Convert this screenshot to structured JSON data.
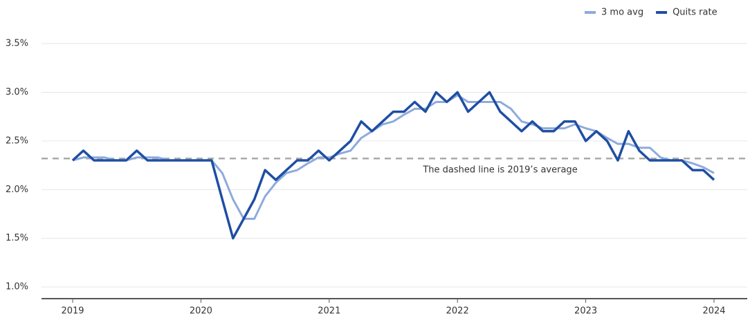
{
  "chart_data": {
    "type": "line",
    "categories": [
      "2019",
      null,
      null,
      null,
      null,
      null,
      null,
      null,
      null,
      null,
      null,
      null,
      "2020",
      null,
      null,
      null,
      null,
      null,
      null,
      null,
      null,
      null,
      null,
      null,
      "2021",
      null,
      null,
      null,
      null,
      null,
      null,
      null,
      null,
      null,
      null,
      null,
      "2022",
      null,
      null,
      null,
      null,
      null,
      null,
      null,
      null,
      null,
      null,
      null,
      "2023",
      null,
      null,
      null,
      null,
      null,
      null,
      null,
      null,
      null,
      null,
      null,
      "2024"
    ],
    "series": [
      {
        "name": "3 mo avg",
        "color": "#8eaadd",
        "values": [
          2.3,
          2.33,
          2.33,
          2.33,
          2.3,
          2.3,
          2.33,
          2.33,
          2.33,
          2.3,
          2.3,
          2.3,
          2.3,
          2.3,
          2.17,
          1.9,
          1.7,
          1.7,
          1.93,
          2.07,
          2.17,
          2.2,
          2.27,
          2.33,
          2.33,
          2.37,
          2.4,
          2.53,
          2.6,
          2.67,
          2.7,
          2.77,
          2.83,
          2.83,
          2.9,
          2.9,
          2.97,
          2.9,
          2.9,
          2.9,
          2.9,
          2.83,
          2.7,
          2.67,
          2.63,
          2.63,
          2.63,
          2.67,
          2.63,
          2.6,
          2.53,
          2.47,
          2.47,
          2.43,
          2.43,
          2.33,
          2.3,
          2.3,
          2.27,
          2.23,
          2.17
        ]
      },
      {
        "name": "Quits rate",
        "color": "#1f4ea3",
        "values": [
          2.3,
          2.4,
          2.3,
          2.3,
          2.3,
          2.3,
          2.4,
          2.3,
          2.3,
          2.3,
          2.3,
          2.3,
          2.3,
          2.3,
          1.9,
          1.5,
          1.7,
          1.9,
          2.2,
          2.1,
          2.2,
          2.3,
          2.3,
          2.4,
          2.3,
          2.4,
          2.5,
          2.7,
          2.6,
          2.7,
          2.8,
          2.8,
          2.9,
          2.8,
          3.0,
          2.9,
          3.0,
          2.8,
          2.9,
          3.0,
          2.8,
          2.7,
          2.6,
          2.7,
          2.6,
          2.6,
          2.7,
          2.7,
          2.5,
          2.6,
          2.5,
          2.3,
          2.6,
          2.4,
          2.3,
          2.3,
          2.3,
          2.3,
          2.2,
          2.2,
          2.1
        ]
      }
    ],
    "reference_line": {
      "value": 2.32,
      "label": "The dashed line is 2019’s average",
      "color": "#aaaaaa"
    },
    "ylim": [
      0.88,
      3.55
    ],
    "yticks": [
      {
        "value": 1.0,
        "label": "1.0%"
      },
      {
        "value": 1.5,
        "label": "1.5%"
      },
      {
        "value": 2.0,
        "label": "2.0%"
      },
      {
        "value": 2.5,
        "label": "2.5%"
      },
      {
        "value": 3.0,
        "label": "3.0%"
      },
      {
        "value": 3.5,
        "label": "3.5%"
      }
    ],
    "grid": true,
    "legend": "top-right"
  }
}
